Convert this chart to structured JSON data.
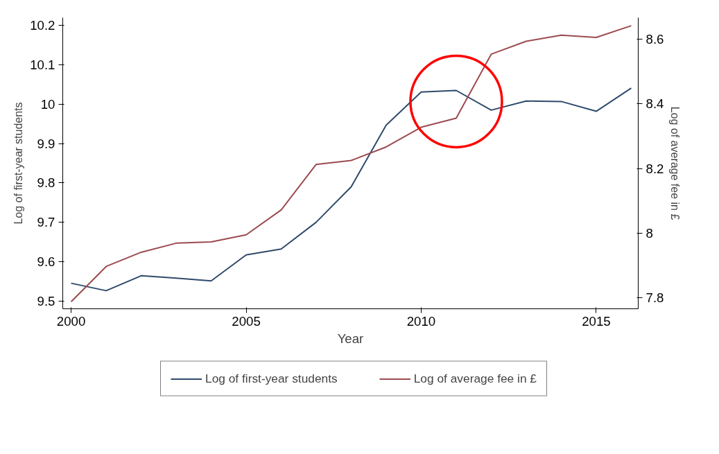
{
  "chart_data": {
    "type": "line",
    "xlabel": "Year",
    "ylabel": "Log of first-year students",
    "y2label": "Log of average fee in £",
    "x": [
      2000,
      2001,
      2002,
      2003,
      2004,
      2005,
      2006,
      2007,
      2008,
      2009,
      2010,
      2011,
      2012,
      2013,
      2014,
      2015,
      2016
    ],
    "series": [
      {
        "name": "Log of first-year students",
        "color": "#2e4a6b",
        "values": [
          9.545,
          9.526,
          9.564,
          9.558,
          9.551,
          9.617,
          9.632,
          9.7,
          9.79,
          9.947,
          10.031,
          10.035,
          9.985,
          10.008,
          10.007,
          9.982,
          10.041
        ]
      },
      {
        "name": "Log of average fee in £",
        "color": "#9b4a4f",
        "axis": "y2",
        "values": [
          7.788,
          7.897,
          7.941,
          7.969,
          7.973,
          7.995,
          8.072,
          8.213,
          8.225,
          8.267,
          8.328,
          8.356,
          8.554,
          8.594,
          8.613,
          8.606,
          8.642
        ]
      }
    ],
    "xlim": [
      1999.76,
      2016.2
    ],
    "xticks": [
      2000,
      2005,
      2010,
      2015
    ],
    "ylim": [
      9.48,
      10.22
    ],
    "yticks": [
      9.5,
      9.6,
      9.7,
      9.8,
      9.9,
      10,
      10.1,
      10.2
    ],
    "y2lim": [
      7.766,
      8.667
    ],
    "y2ticks": [
      7.8,
      8,
      8.2,
      8.4,
      8.6
    ],
    "grid": false,
    "legend": "bottom"
  }
}
